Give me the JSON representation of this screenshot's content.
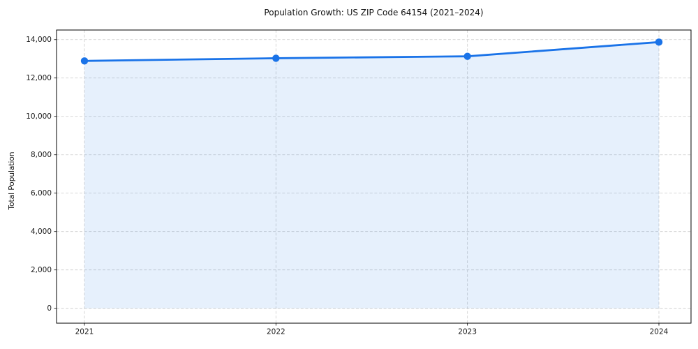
{
  "figure": {
    "background": "#ffffff"
  },
  "chart_data": {
    "type": "line",
    "title": "Population Growth: US ZIP Code 64154 (2021–2024)",
    "xlabel": "",
    "ylabel": "Total Population",
    "categories": [
      "2021",
      "2022",
      "2023",
      "2024"
    ],
    "series": [
      {
        "name": "Total Population",
        "values": [
          12890,
          13030,
          13130,
          13870
        ]
      }
    ],
    "area_fill_to": 0,
    "ylim": [
      -775,
      14500
    ],
    "yticks": {
      "values": [
        0,
        2000,
        4000,
        6000,
        8000,
        10000,
        12000,
        14000
      ],
      "labels": [
        "0",
        "2,000",
        "4,000",
        "6,000",
        "8,000",
        "10,000",
        "12,000",
        "14,000"
      ]
    },
    "grid": "dashed",
    "legend": "none",
    "colors": {
      "line": "#1a73e8",
      "marker": "#1a73e8",
      "fill": "#1a73e8",
      "fill_opacity": "0.11",
      "grid": "#cccccc",
      "spine": "#000000",
      "tick_text": "#1a1a1a"
    }
  }
}
